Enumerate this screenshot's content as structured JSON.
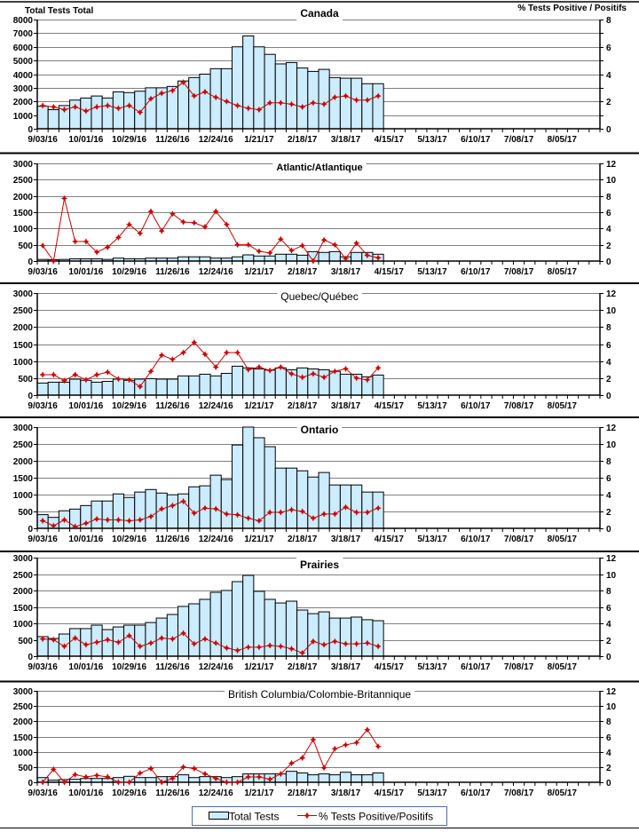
{
  "colors": {
    "bar_fill": "#CCECFF",
    "bar_stroke": "#000000",
    "line": "#CC0000",
    "grid": "#808080",
    "legend_border": "#4A6EA8"
  },
  "legend": {
    "position": "bottom",
    "items": [
      {
        "label": "Total Tests",
        "type": "bar"
      },
      {
        "label": "% Tests Positive/Positifs",
        "type": "line"
      }
    ]
  },
  "chart_data": [
    {
      "region": "canada",
      "type": "bar",
      "title": "Canada",
      "ylabel": "Total Tests Total",
      "y2label": "% Tests Positive / Positifs",
      "xlim_weeks": [
        0,
        52
      ],
      "x_tick_labels": [
        "9/03/16",
        "10/01/16",
        "10/29/16",
        "11/26/16",
        "12/24/16",
        "1/21/17",
        "2/18/17",
        "3/18/17",
        "4/15/17",
        "5/13/17",
        "6/10/17",
        "7/08/17",
        "8/05/17"
      ],
      "ylim": [
        0,
        8000
      ],
      "y_ticks": [
        0,
        1000,
        2000,
        3000,
        4000,
        5000,
        6000,
        7000,
        8000
      ],
      "y2lim": [
        0,
        8
      ],
      "y2_ticks": [
        0,
        2,
        4,
        6,
        8
      ],
      "grid": true,
      "series": [
        {
          "name": "Total Tests",
          "type": "bar",
          "axis": "left",
          "values": [
            1650,
            1400,
            1700,
            2100,
            2250,
            2400,
            2250,
            2700,
            2650,
            2750,
            3000,
            3000,
            3100,
            3500,
            3750,
            4000,
            4400,
            4400,
            6000,
            6800,
            6000,
            5450,
            4750,
            4850,
            4450,
            4200,
            4350,
            3750,
            3700,
            3700,
            3300,
            3300
          ]
        },
        {
          "name": "% Tests Positive/Positifs",
          "type": "line",
          "axis": "right",
          "values": [
            1.7,
            1.6,
            1.4,
            1.6,
            1.3,
            1.6,
            1.7,
            1.5,
            1.7,
            1.2,
            2.2,
            2.6,
            2.8,
            3.4,
            2.4,
            2.7,
            2.3,
            2.0,
            1.7,
            1.5,
            1.4,
            1.9,
            1.9,
            1.8,
            1.6,
            1.9,
            1.8,
            2.3,
            2.4,
            2.1,
            2.1,
            2.4
          ]
        }
      ]
    },
    {
      "region": "atlantic",
      "type": "bar",
      "title": "Atlantic/Atlantique",
      "xlim_weeks": [
        0,
        52
      ],
      "x_tick_labels": [
        "9/03/16",
        "10/01/16",
        "10/29/16",
        "11/26/16",
        "12/24/16",
        "1/21/17",
        "2/18/17",
        "3/18/17",
        "4/15/17",
        "5/13/17",
        "6/10/17",
        "7/08/17",
        "8/05/17"
      ],
      "ylim": [
        0,
        3000
      ],
      "y_ticks": [
        0,
        500,
        1000,
        1500,
        2000,
        2500,
        3000
      ],
      "y2lim": [
        0,
        12
      ],
      "y2_ticks": [
        0,
        2,
        4,
        6,
        8,
        10,
        12
      ],
      "grid": true,
      "series": [
        {
          "name": "Total Tests",
          "type": "bar",
          "axis": "left",
          "values": [
            50,
            40,
            50,
            70,
            70,
            70,
            50,
            90,
            70,
            70,
            90,
            90,
            90,
            130,
            130,
            130,
            90,
            90,
            130,
            190,
            155,
            155,
            210,
            210,
            180,
            290,
            265,
            290,
            130,
            265,
            265,
            210
          ]
        },
        {
          "name": "% Tests Positive/Positifs",
          "type": "line",
          "axis": "right",
          "values": [
            1.9,
            0,
            7.7,
            2.4,
            2.4,
            1.1,
            1.7,
            2.9,
            4.5,
            3.4,
            6.1,
            3.7,
            5.8,
            4.8,
            4.7,
            4.2,
            6.1,
            4.5,
            2.0,
            2.0,
            1.2,
            1.0,
            2.7,
            1.3,
            1.9,
            0,
            2.6,
            2.0,
            0.3,
            2.2,
            0.7,
            0.4
          ]
        }
      ]
    },
    {
      "region": "quebec",
      "type": "bar",
      "title": "Quebec/Québec",
      "xlim_weeks": [
        0,
        52
      ],
      "x_tick_labels": [
        "9/03/16",
        "10/01/16",
        "10/29/16",
        "11/26/16",
        "12/24/16",
        "1/21/17",
        "2/18/17",
        "3/18/17",
        "4/15/17",
        "5/13/17",
        "6/10/17",
        "7/08/17",
        "8/05/17"
      ],
      "ylim": [
        0,
        3000
      ],
      "y_ticks": [
        0,
        500,
        1000,
        1500,
        2000,
        2500,
        3000
      ],
      "y2lim": [
        0,
        12
      ],
      "y2_ticks": [
        0,
        2,
        4,
        6,
        8,
        10,
        12
      ],
      "grid": true,
      "series": [
        {
          "name": "Total Tests",
          "type": "bar",
          "axis": "left",
          "values": [
            355,
            380,
            380,
            470,
            435,
            380,
            405,
            470,
            435,
            470,
            485,
            470,
            470,
            565,
            565,
            615,
            565,
            640,
            850,
            800,
            770,
            735,
            800,
            745,
            800,
            770,
            745,
            700,
            615,
            615,
            540,
            590
          ]
        },
        {
          "name": "% Tests Positive/Positifs",
          "type": "line",
          "axis": "right",
          "values": [
            2.4,
            2.4,
            1.7,
            2.4,
            1.8,
            2.4,
            2.7,
            1.9,
            1.8,
            1.0,
            2.8,
            4.7,
            4.2,
            5.0,
            6.2,
            4.8,
            3.3,
            5.0,
            5.0,
            3.0,
            3.3,
            2.9,
            3.3,
            2.5,
            2.1,
            2.5,
            2.1,
            2.8,
            3.1,
            2.0,
            1.8,
            3.2
          ]
        }
      ]
    },
    {
      "region": "ontario",
      "type": "bar",
      "title": "Ontario",
      "xlim_weeks": [
        0,
        52
      ],
      "x_tick_labels": [
        "9/03/16",
        "10/01/16",
        "10/29/16",
        "11/26/16",
        "12/24/16",
        "1/21/17",
        "2/18/17",
        "3/18/17",
        "4/15/17",
        "5/13/17",
        "6/10/17",
        "7/08/17",
        "8/05/17"
      ],
      "ylim": [
        0,
        3000
      ],
      "y_ticks": [
        0,
        500,
        1000,
        1500,
        2000,
        2500,
        3000
      ],
      "y2lim": [
        0,
        12
      ],
      "y2_ticks": [
        0,
        2,
        4,
        6,
        8,
        10,
        12
      ],
      "grid": true,
      "series": [
        {
          "name": "Total Tests",
          "type": "bar",
          "axis": "left",
          "values": [
            405,
            325,
            520,
            570,
            675,
            810,
            810,
            1020,
            915,
            1075,
            1150,
            1045,
            995,
            1020,
            1230,
            1260,
            1575,
            1445,
            2470,
            3000,
            2685,
            2420,
            1785,
            1785,
            1705,
            1520,
            1655,
            1285,
            1285,
            1285,
            1075,
            1075
          ]
        },
        {
          "name": "% Tests Positive/Positifs",
          "type": "line",
          "axis": "right",
          "values": [
            0.9,
            0.3,
            1.0,
            0.2,
            0.6,
            1.1,
            1.0,
            1.0,
            0.9,
            1.0,
            1.4,
            2.3,
            2.7,
            3.2,
            1.8,
            2.4,
            2.3,
            1.7,
            1.6,
            1.2,
            0.9,
            1.9,
            1.9,
            2.2,
            2.0,
            1.2,
            1.7,
            1.7,
            2.5,
            1.9,
            1.9,
            2.4
          ]
        }
      ]
    },
    {
      "region": "prairies",
      "type": "bar",
      "title": "Prairies",
      "xlim_weeks": [
        0,
        52
      ],
      "x_tick_labels": [
        "9/03/16",
        "10/01/16",
        "10/29/16",
        "11/26/16",
        "12/24/16",
        "1/21/17",
        "2/18/17",
        "3/18/17",
        "4/15/17",
        "5/13/17",
        "6/10/17",
        "7/08/17",
        "8/05/17"
      ],
      "ylim": [
        0,
        3000
      ],
      "y_ticks": [
        0,
        500,
        1000,
        1500,
        2000,
        2500,
        3000
      ],
      "y2lim": [
        0,
        12
      ],
      "y2_ticks": [
        0,
        2,
        4,
        6,
        8,
        10,
        12
      ],
      "grid": true,
      "series": [
        {
          "name": "Total Tests",
          "type": "bar",
          "axis": "left",
          "values": [
            595,
            540,
            675,
            840,
            840,
            945,
            810,
            890,
            945,
            945,
            1025,
            1160,
            1270,
            1515,
            1595,
            1730,
            1945,
            2000,
            2270,
            2460,
            1975,
            1730,
            1620,
            1675,
            1405,
            1295,
            1350,
            1160,
            1160,
            1190,
            1110,
            1080
          ]
        },
        {
          "name": "% Tests Positive/Positifs",
          "type": "line",
          "axis": "right",
          "values": [
            2.1,
            2.0,
            1.2,
            2.2,
            1.4,
            1.7,
            2.0,
            1.7,
            2.5,
            1.2,
            1.6,
            2.2,
            2.1,
            2.8,
            1.5,
            2.1,
            1.6,
            1.0,
            0.7,
            1.1,
            1.1,
            1.3,
            1.2,
            0.9,
            0.4,
            1.8,
            1.4,
            1.8,
            1.5,
            1.5,
            1.6,
            1.2
          ]
        }
      ]
    },
    {
      "region": "british-columbia",
      "type": "bar",
      "title": "British Columbia/Colombie-Britannique",
      "xlim_weeks": [
        0,
        52
      ],
      "x_tick_labels": [
        "9/03/16",
        "10/01/16",
        "10/29/16",
        "11/26/16",
        "12/24/16",
        "1/21/17",
        "2/18/17",
        "3/18/17",
        "4/15/17",
        "5/13/17",
        "6/10/17",
        "7/08/17",
        "8/05/17"
      ],
      "ylim": [
        0,
        3000
      ],
      "y_ticks": [
        0,
        500,
        1000,
        1500,
        2000,
        2500,
        3000
      ],
      "y2lim": [
        0,
        12
      ],
      "y2_ticks": [
        0,
        2,
        4,
        6,
        8,
        10,
        12
      ],
      "grid": true,
      "series": [
        {
          "name": "Total Tests",
          "type": "bar",
          "axis": "left",
          "values": [
            155,
            70,
            90,
            100,
            125,
            125,
            125,
            155,
            195,
            155,
            155,
            185,
            185,
            245,
            155,
            185,
            185,
            155,
            185,
            275,
            275,
            275,
            275,
            360,
            305,
            245,
            275,
            245,
            330,
            245,
            245,
            305
          ]
        },
        {
          "name": "% Tests Positive/Positifs",
          "type": "line",
          "axis": "right",
          "values": [
            0,
            1.7,
            0,
            1.0,
            0.7,
            0.9,
            0.7,
            0,
            0,
            1.2,
            1.8,
            0,
            0.5,
            2.0,
            1.8,
            1.1,
            0.5,
            0,
            0,
            0.7,
            0.7,
            0.4,
            1.1,
            2.5,
            3.2,
            5.6,
            1.9,
            4.4,
            4.9,
            5.2,
            6.9,
            4.7
          ]
        }
      ]
    }
  ]
}
